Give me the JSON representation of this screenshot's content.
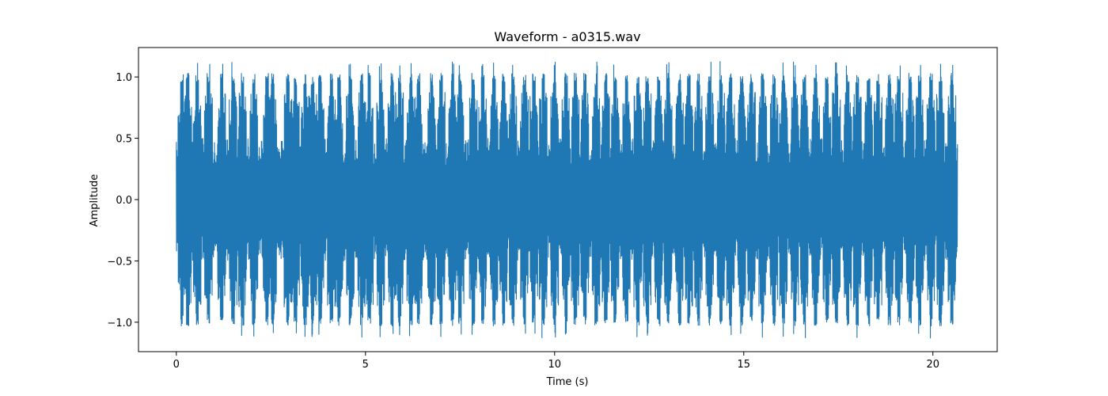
{
  "chart_data": {
    "type": "line",
    "title": "Waveform - a0315.wav",
    "xlabel": "Time (s)",
    "ylabel": "Amplitude",
    "xlim": [
      -1.0,
      21.7
    ],
    "ylim": [
      -1.24,
      1.24
    ],
    "x_ticks": [
      0,
      5,
      10,
      15,
      20
    ],
    "x_tick_labels": [
      "0",
      "5",
      "10",
      "15",
      "20"
    ],
    "y_ticks": [
      -1.0,
      -0.5,
      0.0,
      0.5,
      1.0
    ],
    "y_tick_labels": [
      "−1.0",
      "−0.5",
      "0.0",
      "0.5",
      "1.0"
    ],
    "grid": false,
    "legend": "none",
    "series": [
      {
        "name": "a0315.wav",
        "color": "#1f77b4",
        "duration_s": 20.65,
        "envelope": {
          "baseline_amplitude": 0.5,
          "peak_amplitude": 1.03,
          "max_peak_amplitude": 1.13,
          "peak_times_s": [
            0.15,
            0.3,
            0.55,
            0.85,
            1.2,
            1.5,
            1.75,
            2.05,
            2.4,
            2.55,
            2.95,
            3.15,
            3.4,
            3.6,
            3.8,
            4.1,
            4.3,
            4.6,
            4.9,
            5.1,
            5.4,
            5.7,
            5.9,
            6.2,
            6.4,
            6.75,
            7.0,
            7.3,
            7.5,
            7.85,
            8.1,
            8.4,
            8.65,
            8.9,
            9.2,
            9.45,
            9.7,
            10.0,
            10.3,
            10.55,
            10.8,
            11.1,
            11.35,
            11.6,
            11.9,
            12.2,
            12.45,
            12.75,
            13.0,
            13.3,
            13.55,
            13.8,
            14.1,
            14.4,
            14.65,
            14.95,
            15.2,
            15.5,
            15.8,
            16.05,
            16.35,
            16.6,
            16.9,
            17.2,
            17.45,
            17.75,
            18.0,
            18.3,
            18.55,
            18.85,
            19.1,
            19.4,
            19.65,
            19.95,
            20.2,
            20.5
          ]
        }
      }
    ]
  }
}
